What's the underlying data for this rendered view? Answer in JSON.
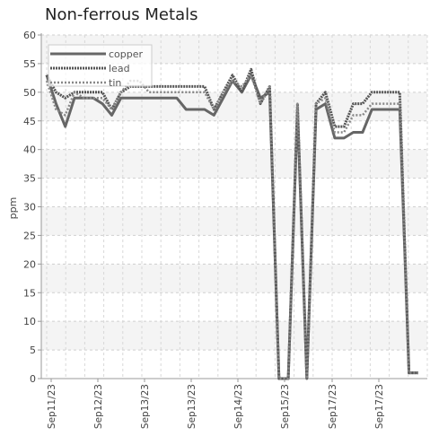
{
  "chart_data": {
    "type": "line",
    "title": "Non-ferrous Metals",
    "xlabel": "",
    "ylabel": "ppm",
    "ylim": [
      0,
      60
    ],
    "yticks": [
      0,
      5,
      10,
      15,
      20,
      25,
      30,
      35,
      40,
      45,
      50,
      55,
      60
    ],
    "grid": true,
    "legend_position": "top-left",
    "x_tick_labels": [
      "Sep11/23",
      "Sep12/23",
      "Sep13/23",
      "Sep13/23",
      "Sep14/23",
      "Sep15/23",
      "Sep17/23",
      "Sep17/23"
    ],
    "series": [
      {
        "name": "copper",
        "color": "#666666",
        "style": "solid",
        "values": [
          53,
          48,
          44,
          49,
          49,
          49,
          48,
          46,
          49,
          49,
          49,
          49,
          49,
          49,
          49,
          47,
          47,
          47,
          46,
          49,
          52,
          50,
          53,
          49,
          50,
          0,
          0,
          47,
          0,
          47,
          48,
          42,
          42,
          43,
          43,
          47,
          47,
          47,
          47,
          1,
          1
        ]
      },
      {
        "name": "lead",
        "color": "#555555",
        "style": "dense-dash",
        "values": [
          53,
          50,
          49,
          50,
          50,
          50,
          50,
          47,
          50,
          51,
          51,
          51,
          51,
          51,
          51,
          51,
          51,
          51,
          47,
          50,
          53,
          50,
          54,
          48,
          51,
          0,
          0,
          48,
          0,
          48,
          50,
          44,
          44,
          48,
          48,
          50,
          50,
          50,
          50,
          1,
          1
        ]
      },
      {
        "name": "tin",
        "color": "#888888",
        "style": "dotted",
        "values": [
          52,
          47,
          46,
          50,
          49,
          49,
          49,
          47,
          50,
          52,
          52,
          50,
          50,
          50,
          50,
          50,
          50,
          50,
          47,
          50,
          52,
          51,
          53,
          48,
          51,
          0,
          0,
          48,
          0,
          48,
          49,
          43,
          43,
          46,
          46,
          48,
          48,
          48,
          48,
          1,
          1
        ]
      }
    ]
  }
}
